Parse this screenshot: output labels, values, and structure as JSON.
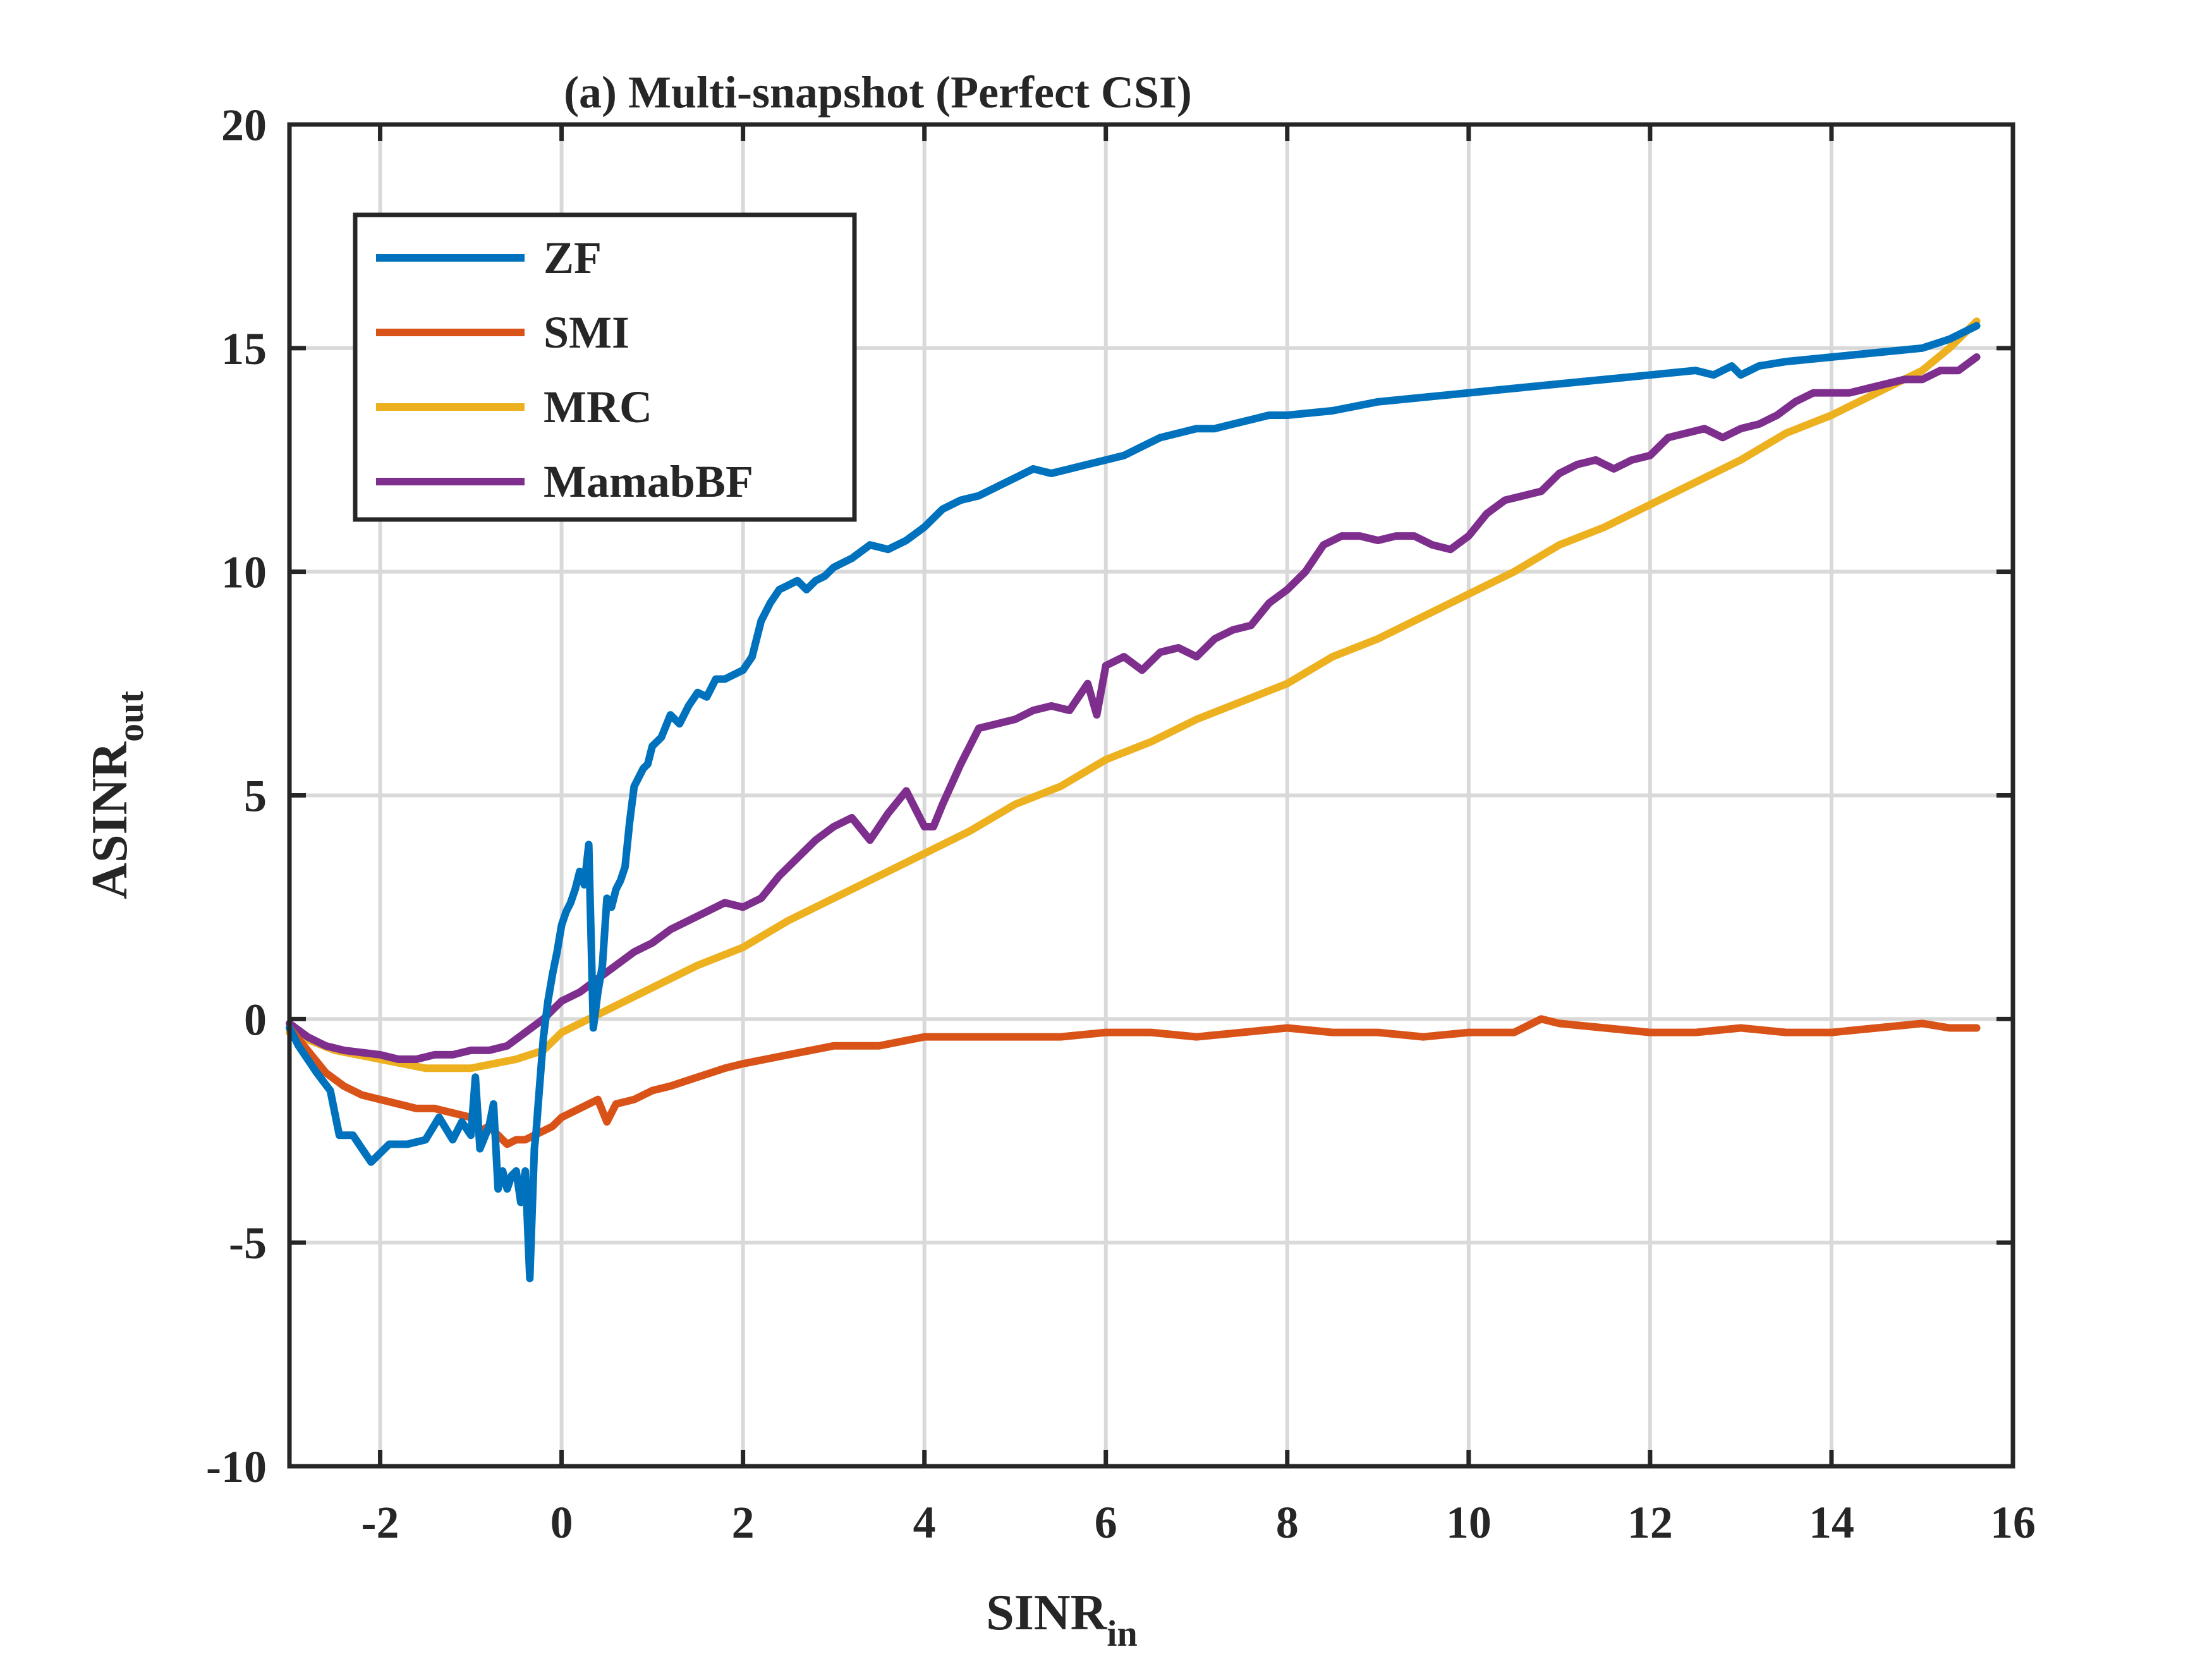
{
  "chart_data": {
    "type": "line",
    "title": "(a) Multi-snapshot (Perfect CSI)",
    "xlabel": {
      "main": "SINR",
      "sub": "in"
    },
    "ylabel": {
      "main": "ASINR",
      "sub": "out"
    },
    "xlim": [
      -3,
      16
    ],
    "ylim": [
      -10,
      20
    ],
    "xticks": [
      -2,
      0,
      2,
      4,
      6,
      8,
      10,
      12,
      14,
      16
    ],
    "yticks": [
      -10,
      -5,
      0,
      5,
      10,
      15,
      20
    ],
    "grid": true,
    "legend_position": "top-left",
    "series": [
      {
        "name": "ZF",
        "color": "#0072BD",
        "x": [
          -3,
          -2.9,
          -2.7,
          -2.55,
          -2.45,
          -2.3,
          -2.2,
          -2.1,
          -2.0,
          -1.9,
          -1.7,
          -1.5,
          -1.35,
          -1.2,
          -1.1,
          -1.0,
          -0.95,
          -0.9,
          -0.8,
          -0.75,
          -0.7,
          -0.65,
          -0.6,
          -0.55,
          -0.5,
          -0.45,
          -0.4,
          -0.35,
          -0.3,
          -0.28,
          -0.25,
          -0.2,
          -0.15,
          -0.1,
          -0.05,
          0,
          0.05,
          0.1,
          0.15,
          0.2,
          0.25,
          0.3,
          0.35,
          0.4,
          0.45,
          0.5,
          0.55,
          0.6,
          0.65,
          0.7,
          0.75,
          0.8,
          0.85,
          0.9,
          0.95,
          1.0,
          1.1,
          1.2,
          1.3,
          1.4,
          1.5,
          1.6,
          1.7,
          1.8,
          1.9,
          2.0,
          2.1,
          2.2,
          2.3,
          2.4,
          2.5,
          2.6,
          2.7,
          2.8,
          2.9,
          3.0,
          3.2,
          3.4,
          3.6,
          3.8,
          4.0,
          4.2,
          4.4,
          4.6,
          4.8,
          5.0,
          5.2,
          5.4,
          5.6,
          5.8,
          6.0,
          6.2,
          6.4,
          6.6,
          6.8,
          7.0,
          7.2,
          7.4,
          7.6,
          7.8,
          8.0,
          8.5,
          9.0,
          9.5,
          10.0,
          10.5,
          11.0,
          11.5,
          12.0,
          12.5,
          12.7,
          12.9,
          13.0,
          13.2,
          13.5,
          14.0,
          14.5,
          15.0,
          15.3,
          15.6
        ],
        "y": [
          -0.2,
          -0.6,
          -1.2,
          -1.6,
          -2.6,
          -2.6,
          -2.9,
          -3.2,
          -3.0,
          -2.8,
          -2.8,
          -2.7,
          -2.2,
          -2.7,
          -2.3,
          -2.6,
          -1.3,
          -2.9,
          -2.4,
          -1.9,
          -3.8,
          -3.4,
          -3.8,
          -3.5,
          -3.4,
          -4.1,
          -3.4,
          -5.8,
          -2.9,
          -2.5,
          -1.7,
          -0.4,
          0.4,
          1.0,
          1.5,
          2.1,
          2.4,
          2.6,
          2.9,
          3.3,
          3.0,
          3.9,
          -0.2,
          0.6,
          1.2,
          2.7,
          2.5,
          2.9,
          3.1,
          3.4,
          4.4,
          5.2,
          5.4,
          5.6,
          5.7,
          6.1,
          6.3,
          6.8,
          6.6,
          7.0,
          7.3,
          7.2,
          7.6,
          7.6,
          7.7,
          7.8,
          8.1,
          8.9,
          9.3,
          9.6,
          9.7,
          9.8,
          9.6,
          9.8,
          9.9,
          10.1,
          10.3,
          10.6,
          10.5,
          10.7,
          11.0,
          11.4,
          11.6,
          11.7,
          11.9,
          12.1,
          12.3,
          12.2,
          12.3,
          12.4,
          12.5,
          12.6,
          12.8,
          13.0,
          13.1,
          13.2,
          13.2,
          13.3,
          13.4,
          13.5,
          13.5,
          13.6,
          13.8,
          13.9,
          14.0,
          14.1,
          14.2,
          14.3,
          14.4,
          14.5,
          14.4,
          14.6,
          14.4,
          14.6,
          14.7,
          14.8,
          14.9,
          15.0,
          15.2,
          15.5
        ]
      },
      {
        "name": "SMI",
        "color": "#D95319",
        "x": [
          -3,
          -2.8,
          -2.6,
          -2.4,
          -2.2,
          -2.0,
          -1.8,
          -1.6,
          -1.4,
          -1.2,
          -1.0,
          -0.9,
          -0.8,
          -0.7,
          -0.6,
          -0.5,
          -0.4,
          -0.3,
          -0.2,
          -0.1,
          0,
          0.2,
          0.4,
          0.5,
          0.6,
          0.8,
          1.0,
          1.2,
          1.5,
          1.8,
          2.0,
          2.5,
          3.0,
          3.5,
          4.0,
          4.5,
          5.0,
          5.5,
          6.0,
          6.5,
          7.0,
          7.5,
          8.0,
          8.5,
          9.0,
          9.5,
          10.0,
          10.5,
          10.8,
          11.0,
          11.5,
          12.0,
          12.5,
          13.0,
          13.5,
          14.0,
          14.5,
          15.0,
          15.3,
          15.6
        ],
        "y": [
          -0.2,
          -0.7,
          -1.2,
          -1.5,
          -1.7,
          -1.8,
          -1.9,
          -2.0,
          -2.0,
          -2.1,
          -2.2,
          -2.5,
          -2.4,
          -2.6,
          -2.8,
          -2.7,
          -2.7,
          -2.6,
          -2.5,
          -2.4,
          -2.2,
          -2.0,
          -1.8,
          -2.3,
          -1.9,
          -1.8,
          -1.6,
          -1.5,
          -1.3,
          -1.1,
          -1.0,
          -0.8,
          -0.6,
          -0.6,
          -0.4,
          -0.4,
          -0.4,
          -0.4,
          -0.3,
          -0.3,
          -0.4,
          -0.3,
          -0.2,
          -0.3,
          -0.3,
          -0.4,
          -0.3,
          -0.3,
          0.0,
          -0.1,
          -0.2,
          -0.3,
          -0.3,
          -0.2,
          -0.3,
          -0.3,
          -0.2,
          -0.1,
          -0.2,
          -0.2
        ]
      },
      {
        "name": "MRC",
        "color": "#EDB120",
        "x": [
          -3,
          -2.5,
          -2.0,
          -1.5,
          -1.0,
          -0.5,
          -0.2,
          0,
          0.5,
          1.0,
          1.5,
          2.0,
          2.5,
          3.0,
          3.5,
          4.0,
          4.5,
          5.0,
          5.5,
          6.0,
          6.5,
          7.0,
          7.5,
          8.0,
          8.5,
          9.0,
          9.5,
          10.0,
          10.5,
          11.0,
          11.5,
          12.0,
          12.5,
          13.0,
          13.5,
          14.0,
          14.5,
          15.0,
          15.3,
          15.6
        ],
        "y": [
          -0.3,
          -0.7,
          -0.9,
          -1.1,
          -1.1,
          -0.9,
          -0.7,
          -0.3,
          0.2,
          0.7,
          1.2,
          1.6,
          2.2,
          2.7,
          3.2,
          3.7,
          4.2,
          4.8,
          5.2,
          5.8,
          6.2,
          6.7,
          7.1,
          7.5,
          8.1,
          8.5,
          9.0,
          9.5,
          10.0,
          10.6,
          11.0,
          11.5,
          12.0,
          12.5,
          13.1,
          13.5,
          14.0,
          14.5,
          15.0,
          15.6
        ]
      },
      {
        "name": "MamabBF",
        "color": "#7E2F8E",
        "x": [
          -3,
          -2.8,
          -2.6,
          -2.4,
          -2.2,
          -2.0,
          -1.8,
          -1.6,
          -1.4,
          -1.2,
          -1.0,
          -0.8,
          -0.6,
          -0.4,
          -0.2,
          0,
          0.2,
          0.4,
          0.6,
          0.8,
          1.0,
          1.2,
          1.4,
          1.6,
          1.8,
          2.0,
          2.2,
          2.4,
          2.6,
          2.8,
          3.0,
          3.2,
          3.4,
          3.6,
          3.8,
          4.0,
          4.1,
          4.2,
          4.4,
          4.6,
          4.8,
          5.0,
          5.2,
          5.4,
          5.6,
          5.8,
          5.9,
          6.0,
          6.2,
          6.4,
          6.6,
          6.8,
          7.0,
          7.2,
          7.4,
          7.6,
          7.8,
          8.0,
          8.2,
          8.4,
          8.6,
          8.8,
          9.0,
          9.2,
          9.4,
          9.6,
          9.8,
          10.0,
          10.2,
          10.4,
          10.6,
          10.8,
          11.0,
          11.2,
          11.4,
          11.6,
          11.8,
          12.0,
          12.2,
          12.4,
          12.6,
          12.8,
          13.0,
          13.2,
          13.4,
          13.6,
          13.8,
          14.0,
          14.2,
          14.4,
          14.6,
          14.8,
          15.0,
          15.2,
          15.4,
          15.6
        ],
        "y": [
          -0.1,
          -0.4,
          -0.6,
          -0.7,
          -0.75,
          -0.8,
          -0.9,
          -0.9,
          -0.8,
          -0.8,
          -0.7,
          -0.7,
          -0.6,
          -0.3,
          0.0,
          0.4,
          0.6,
          0.9,
          1.2,
          1.5,
          1.7,
          2.0,
          2.2,
          2.4,
          2.6,
          2.5,
          2.7,
          3.2,
          3.6,
          4.0,
          4.3,
          4.5,
          4.0,
          4.6,
          5.1,
          4.3,
          4.3,
          4.8,
          5.7,
          6.5,
          6.6,
          6.7,
          6.9,
          7.0,
          6.9,
          7.5,
          6.8,
          7.9,
          8.1,
          7.8,
          8.2,
          8.3,
          8.1,
          8.5,
          8.7,
          8.8,
          9.3,
          9.6,
          10.0,
          10.6,
          10.8,
          10.8,
          10.7,
          10.8,
          10.8,
          10.6,
          10.5,
          10.8,
          11.3,
          11.6,
          11.7,
          11.8,
          12.2,
          12.4,
          12.5,
          12.3,
          12.5,
          12.6,
          13.0,
          13.1,
          13.2,
          13.0,
          13.2,
          13.3,
          13.5,
          13.8,
          14.0,
          14.0,
          14.0,
          14.1,
          14.2,
          14.3,
          14.3,
          14.5,
          14.5,
          14.8
        ]
      }
    ]
  }
}
